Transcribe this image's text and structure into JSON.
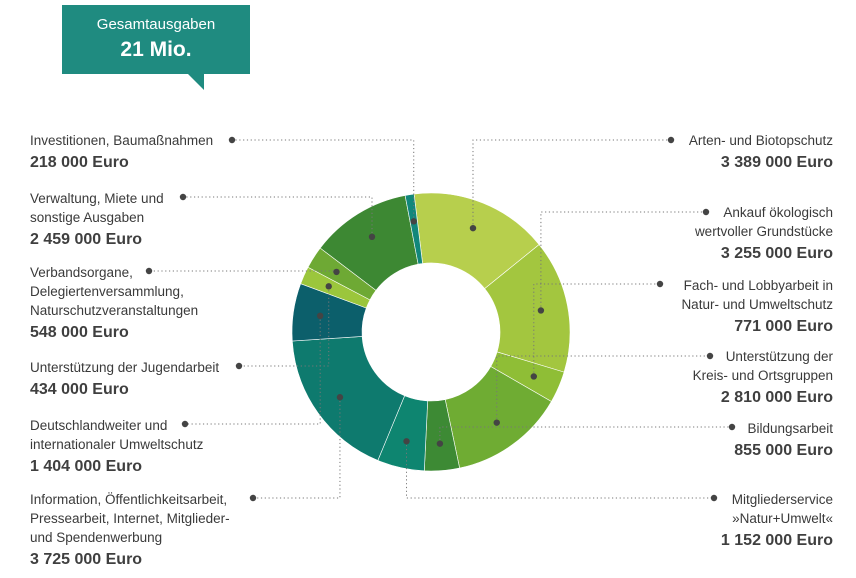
{
  "total": {
    "label": "Gesamtausgaben",
    "value": "21 Mio."
  },
  "chart_data": {
    "type": "pie",
    "variant": "donut",
    "unit": "Euro",
    "slices": [
      {
        "lines": [
          "Arten- und Biotopschutz"
        ],
        "amount": "3 389 000 Euro",
        "value": 3389000,
        "color": "#b7cf4d",
        "side": "right"
      },
      {
        "lines": [
          "Ankauf ökologisch",
          "wertvoller Grundstücke"
        ],
        "amount": "3 255 000 Euro",
        "value": 3255000,
        "color": "#a3c63f",
        "side": "right"
      },
      {
        "lines": [
          "Fach- und Lobbyarbeit in",
          "Natur- und Umweltschutz"
        ],
        "amount": "771 000 Euro",
        "value": 771000,
        "color": "#8fbe36",
        "side": "right"
      },
      {
        "lines": [
          "Unterstützung der",
          "Kreis- und Ortsgruppen"
        ],
        "amount": "2 810 000 Euro",
        "value": 2810000,
        "color": "#6fac33",
        "side": "right"
      },
      {
        "lines": [
          "Bildungsarbeit"
        ],
        "amount": "855 000 Euro",
        "value": 855000,
        "color": "#3d8a34",
        "side": "right"
      },
      {
        "lines": [
          "Mitgliederservice",
          "»Natur+Umwelt«"
        ],
        "amount": "1 152 000 Euro",
        "value": 1152000,
        "color": "#0e8570",
        "side": "right"
      },
      {
        "lines": [
          "Information, Öffentlichkeitsarbeit,",
          "Pressearbeit, Internet, Mitglieder-",
          "und Spendenwerbung"
        ],
        "amount": "3 725 000 Euro",
        "value": 3725000,
        "color": "#0e7a6e",
        "side": "left"
      },
      {
        "lines": [
          "Deutschlandweiter und",
          "internationaler Umweltschutz"
        ],
        "amount": "1 404 000 Euro",
        "value": 1404000,
        "color": "#0c5f6b",
        "side": "left"
      },
      {
        "lines": [
          "Unterstützung der Jugendarbeit"
        ],
        "amount": "434 000 Euro",
        "value": 434000,
        "color": "#9bc63c",
        "side": "left"
      },
      {
        "lines": [
          "Verbandsorgane,",
          "Delegiertenversammlung,",
          "Naturschutzveranstaltungen"
        ],
        "amount": "548 000 Euro",
        "value": 548000,
        "color": "#6ea934",
        "side": "left"
      },
      {
        "lines": [
          "Verwaltung, Miete und",
          "sonstige Ausgaben"
        ],
        "amount": "2 459 000 Euro",
        "value": 2459000,
        "color": "#3d8833",
        "side": "left"
      },
      {
        "lines": [
          "Investitionen, Baumaßnahmen"
        ],
        "amount": "218 000 Euro",
        "value": 218000,
        "color": "#12877b",
        "side": "left"
      }
    ]
  }
}
